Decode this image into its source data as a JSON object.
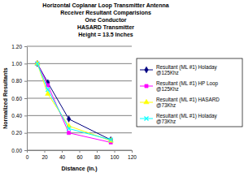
{
  "chart_data": {
    "type": "line",
    "title": [
      "Horizontal Coplanar Loop Transmitter Antenna",
      "Receiver Resultant Comparisions",
      "One Conductor",
      "HASARD Transmitter",
      "Height = 13.5 Inches"
    ],
    "x_label": "Distance (In.)",
    "y_label": "Normalized Resultants",
    "x": [
      12,
      24,
      48,
      96
    ],
    "series": [
      {
        "name": "Resultant (ML #1) Holaday @125Khz",
        "color": "#000080",
        "marker": "diamond",
        "values": [
          1.0,
          0.78,
          0.36,
          0.12
        ]
      },
      {
        "name": "Resultant (ML #1) HP Loop @125Khz",
        "color": "#ff00ff",
        "marker": "square",
        "values": [
          1.0,
          0.75,
          0.2,
          0.09
        ]
      },
      {
        "name": "Resultant (ML #1) HASARD @73Khz",
        "color": "#ffff00",
        "marker": "triangle",
        "values": [
          1.0,
          0.65,
          0.28,
          0.11
        ]
      },
      {
        "name": "Resultant (ML #1) Holaday @73Khz",
        "color": "#00ffff",
        "marker": "x",
        "values": [
          1.0,
          0.7,
          0.25,
          0.12
        ]
      }
    ],
    "xlim": [
      0,
      120
    ],
    "xticks": [
      0,
      20,
      40,
      60,
      80,
      100,
      120
    ],
    "ylim": [
      0,
      1.2
    ],
    "yticks": [
      {
        "value": 0,
        "label": "0.00"
      },
      {
        "value": 0.2,
        "label": "0.20"
      },
      {
        "value": 0.4,
        "label": "0.40"
      },
      {
        "value": 0.6,
        "label": "0.60"
      },
      {
        "value": 0.8,
        "label": "0.80"
      },
      {
        "value": 1.0,
        "label": "1.00"
      },
      {
        "value": 1.2,
        "label": "1.20"
      }
    ],
    "grid": true,
    "legend": "right"
  }
}
